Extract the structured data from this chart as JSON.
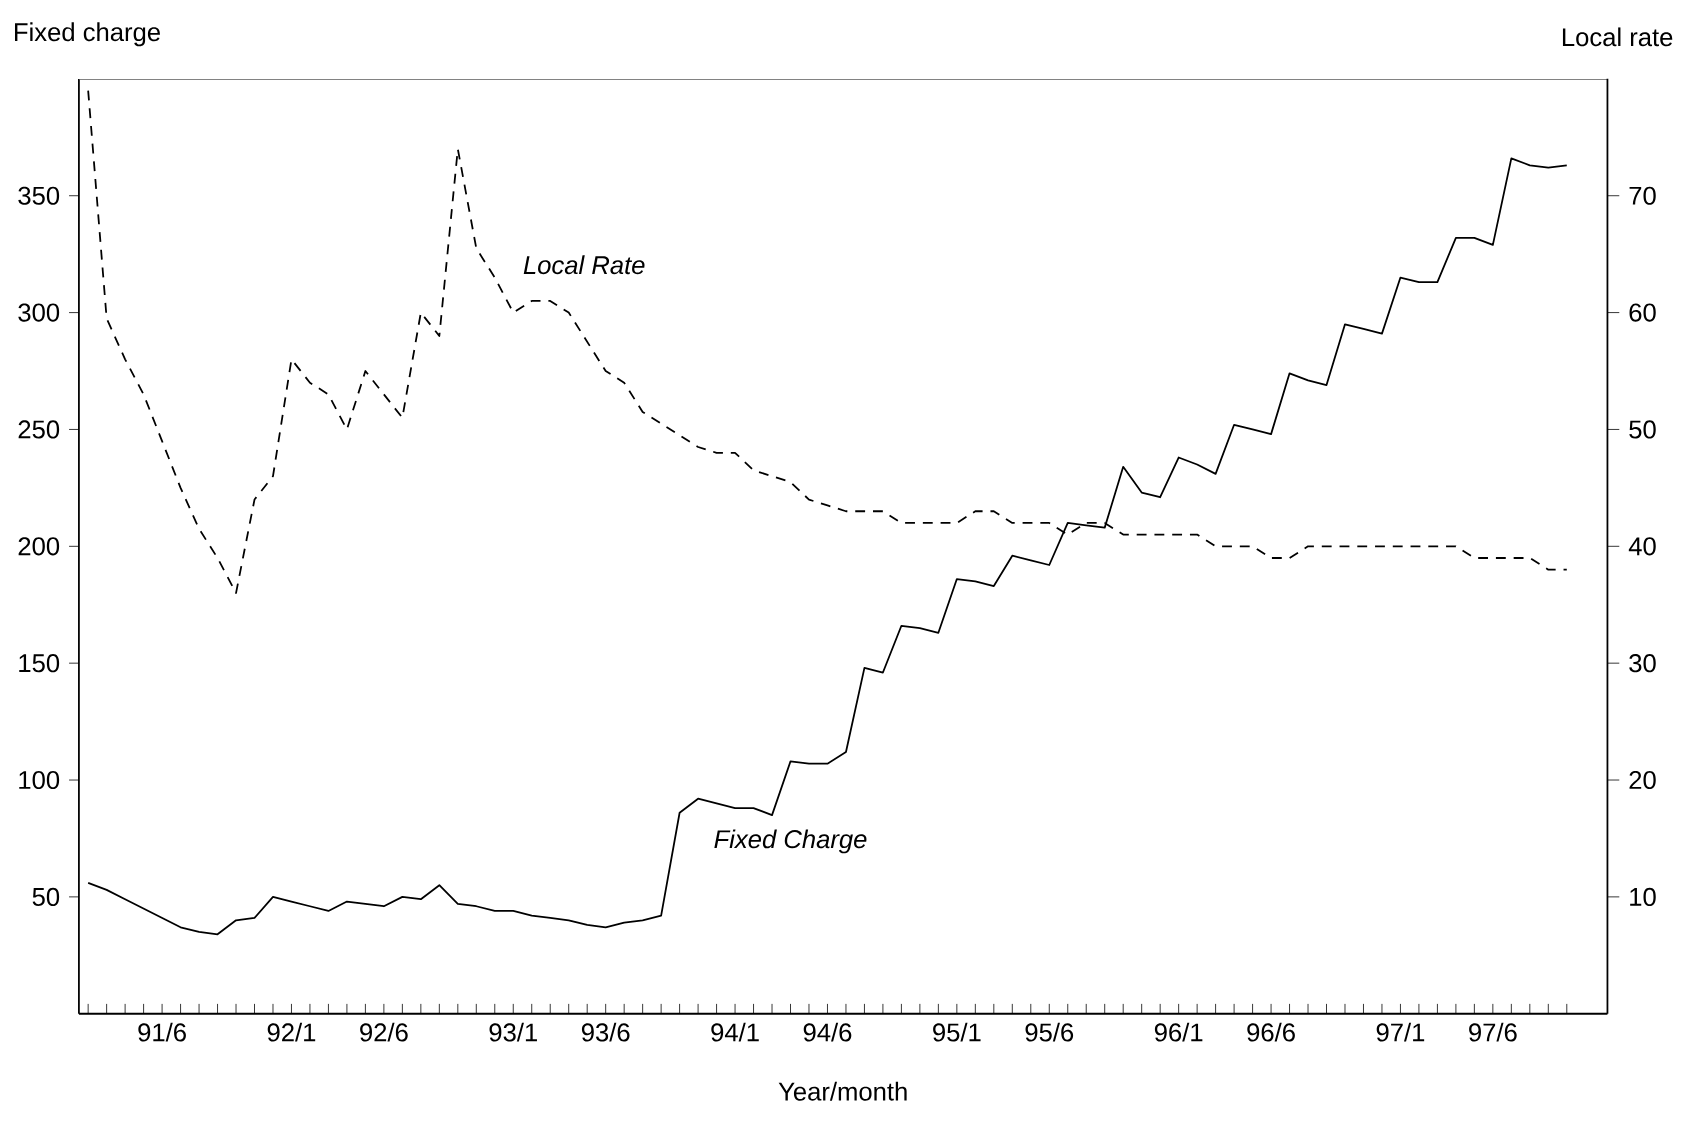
{
  "chart_data": {
    "type": "line",
    "xlabel": "Year/month",
    "ylabel": "Fixed charge",
    "y2label": "Local rate",
    "categories": [
      null,
      null,
      null,
      null,
      "91/6",
      null,
      null,
      null,
      null,
      null,
      null,
      "92/1",
      null,
      null,
      null,
      null,
      "92/6",
      null,
      null,
      null,
      null,
      null,
      null,
      "93/1",
      null,
      null,
      null,
      null,
      "93/6",
      null,
      null,
      null,
      null,
      null,
      null,
      "94/1",
      null,
      null,
      null,
      null,
      "94/6",
      null,
      null,
      null,
      null,
      null,
      null,
      "95/1",
      null,
      null,
      null,
      null,
      "95/6",
      null,
      null,
      null,
      null,
      null,
      null,
      "96/1",
      null,
      null,
      null,
      null,
      "96/6",
      null,
      null,
      null,
      null,
      null,
      null,
      "97/1",
      null,
      null,
      null,
      null,
      "97/6",
      null,
      null,
      null,
      null
    ],
    "ylim": [
      0,
      400
    ],
    "yticks": [
      50,
      100,
      150,
      200,
      250,
      300,
      350
    ],
    "y2lim": [
      0,
      80
    ],
    "y2ticks": [
      10,
      20,
      30,
      40,
      50,
      60,
      70
    ],
    "series": [
      {
        "name": "Fixed Charge",
        "color": "#000000",
        "line_style": "solid",
        "values": [
          56,
          53,
          49,
          45,
          41,
          37,
          35,
          34,
          40,
          41,
          50,
          48,
          46,
          44,
          48,
          47,
          46,
          50,
          49,
          55,
          47,
          46,
          44,
          44,
          42,
          41,
          40,
          38,
          37,
          39,
          40,
          42,
          86,
          92,
          90,
          88,
          88,
          85,
          108,
          107,
          107,
          112,
          148,
          146,
          166,
          165,
          163,
          186,
          185,
          183,
          196,
          194,
          192,
          210,
          209,
          208,
          234,
          223,
          221,
          238,
          235,
          231,
          252,
          250,
          248,
          274,
          271,
          269,
          295,
          293,
          291,
          315,
          313,
          313,
          332,
          332,
          329,
          366,
          363,
          362,
          363
        ]
      },
      {
        "name": "Local Rate",
        "color": "#000000",
        "line_style": "dashed",
        "axis": "y2",
        "values": [
          79,
          59.5,
          56,
          53,
          49,
          45,
          41.5,
          39,
          36,
          44,
          46,
          56,
          54,
          53,
          50,
          55,
          53,
          51,
          60,
          58,
          74,
          65.5,
          63,
          60,
          61,
          61,
          60,
          57.5,
          55,
          54,
          51.5,
          50.5,
          49.5,
          48.5,
          48,
          48,
          46.5,
          46,
          45.5,
          44,
          43.5,
          43,
          43,
          43,
          42,
          42,
          42,
          42,
          43,
          43,
          42,
          42,
          42,
          41,
          42,
          42,
          41,
          41,
          41,
          41,
          41,
          40,
          40,
          40,
          39,
          39,
          40,
          40,
          40,
          40,
          40,
          40,
          40,
          40,
          40,
          39,
          39,
          39,
          39,
          38,
          38
        ]
      }
    ]
  }
}
